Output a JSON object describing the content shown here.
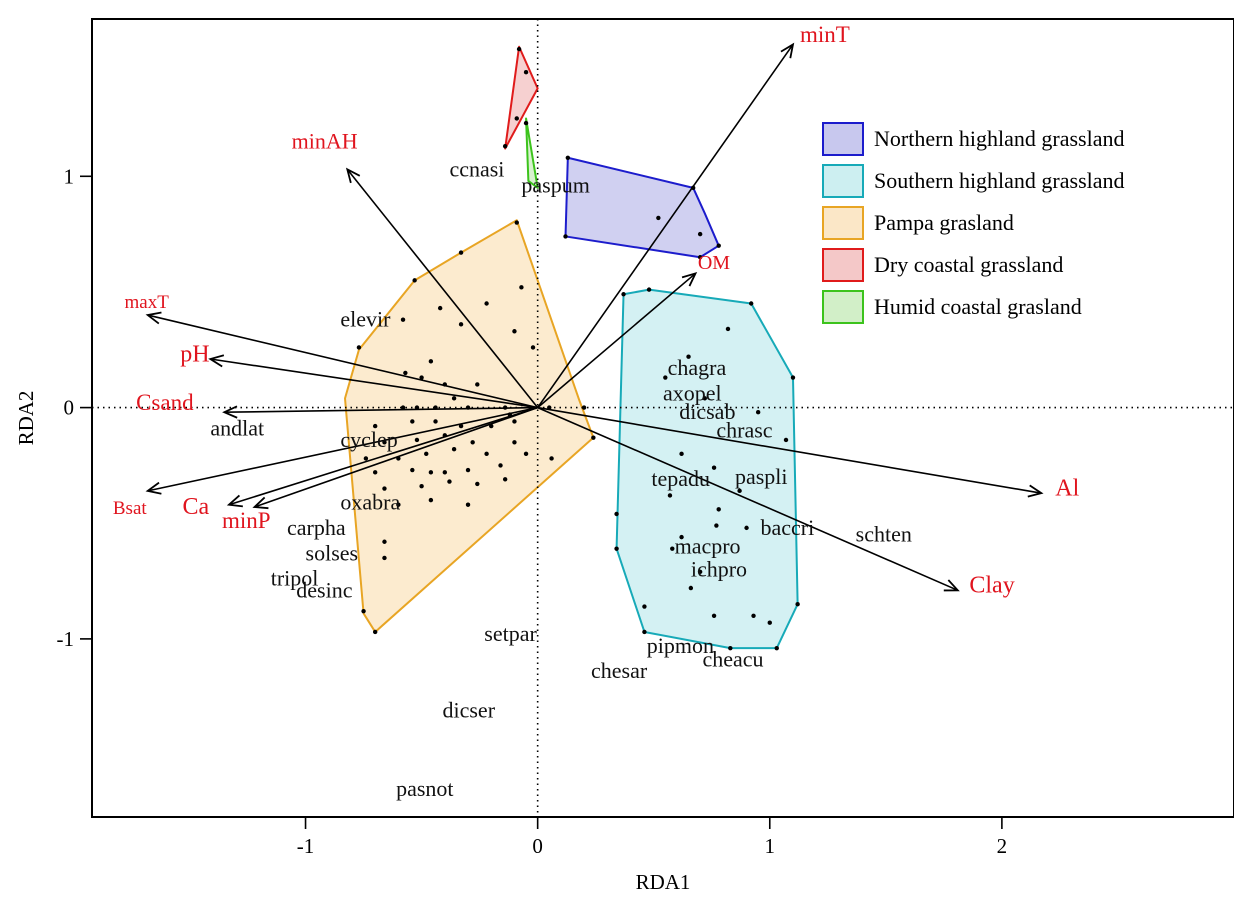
{
  "chart_data": {
    "type": "scatter",
    "title": "",
    "xlabel": "RDA1",
    "ylabel": "RDA2",
    "xlim": [
      -1.92,
      3.0
    ],
    "ylim": [
      -1.77,
      1.68
    ],
    "xticks": [
      {
        "v": -1,
        "label": "-1"
      },
      {
        "v": 0,
        "label": "0"
      },
      {
        "v": 1,
        "label": "1"
      },
      {
        "v": 2,
        "label": "2"
      }
    ],
    "yticks": [
      {
        "v": -1,
        "label": "-1"
      },
      {
        "v": 0,
        "label": "0"
      },
      {
        "v": 1,
        "label": "1"
      }
    ],
    "reference_lines": {
      "x": 0,
      "y": 0,
      "style": "dotted"
    },
    "legend": {
      "position": "top-right",
      "entries": [
        {
          "name": "Northern highland grassland",
          "stroke": "#1c1ccc",
          "fill": "#c8c8ee"
        },
        {
          "name": "Southern highland grassland",
          "stroke": "#17aab8",
          "fill": "#cdeff1"
        },
        {
          "name": "Pampa grasland",
          "stroke": "#e8a524",
          "fill": "#fbe7c7"
        },
        {
          "name": "Dry coastal grassland",
          "stroke": "#e01b1b",
          "fill": "#f4c8c8"
        },
        {
          "name": "Humid coastal grasland",
          "stroke": "#3cc31c",
          "fill": "#d2efc8"
        }
      ]
    },
    "hulls": [
      {
        "group": "Northern highland grassland",
        "points": [
          [
            0.13,
            1.08
          ],
          [
            0.67,
            0.95
          ],
          [
            0.72,
            0.84
          ],
          [
            0.78,
            0.7
          ],
          [
            0.7,
            0.65
          ],
          [
            0.12,
            0.74
          ]
        ]
      },
      {
        "group": "Southern highland grassland",
        "points": [
          [
            0.37,
            0.49
          ],
          [
            0.48,
            0.51
          ],
          [
            0.92,
            0.45
          ],
          [
            1.1,
            0.13
          ],
          [
            1.12,
            -0.85
          ],
          [
            1.03,
            -1.04
          ],
          [
            0.83,
            -1.04
          ],
          [
            0.46,
            -0.97
          ],
          [
            0.34,
            -0.61
          ]
        ]
      },
      {
        "group": "Pampa grasland",
        "points": [
          [
            -0.09,
            0.81
          ],
          [
            -0.33,
            0.67
          ],
          [
            -0.53,
            0.55
          ],
          [
            -0.77,
            0.25
          ],
          [
            -0.83,
            0.04
          ],
          [
            -0.75,
            -0.89
          ],
          [
            -0.7,
            -0.97
          ],
          [
            0.24,
            -0.13
          ],
          [
            0.18,
            0.03
          ]
        ]
      },
      {
        "group": "Dry coastal grassland",
        "points": [
          [
            -0.08,
            1.56
          ],
          [
            0.0,
            1.38
          ],
          [
            -0.07,
            1.25
          ],
          [
            -0.14,
            1.12
          ]
        ]
      },
      {
        "group": "Humid coastal grasland",
        "points": [
          [
            -0.05,
            1.25
          ],
          [
            0.0,
            0.95
          ],
          [
            -0.04,
            0.98
          ]
        ]
      }
    ],
    "site_points": [
      [
        -0.08,
        1.55
      ],
      [
        -0.05,
        1.45
      ],
      [
        -0.09,
        1.25
      ],
      [
        -0.14,
        1.13
      ],
      [
        -0.05,
        1.23
      ],
      [
        0.13,
        1.08
      ],
      [
        0.67,
        0.95
      ],
      [
        0.52,
        0.82
      ],
      [
        0.7,
        0.75
      ],
      [
        0.78,
        0.7
      ],
      [
        0.7,
        0.65
      ],
      [
        0.12,
        0.74
      ],
      [
        -0.09,
        0.8
      ],
      [
        -0.33,
        0.67
      ],
      [
        -0.53,
        0.55
      ],
      [
        -0.07,
        0.52
      ],
      [
        -0.42,
        0.43
      ],
      [
        -0.22,
        0.45
      ],
      [
        -0.58,
        0.38
      ],
      [
        -0.33,
        0.36
      ],
      [
        -0.1,
        0.33
      ],
      [
        -0.77,
        0.26
      ],
      [
        -0.02,
        0.26
      ],
      [
        -0.46,
        0.2
      ],
      [
        -0.57,
        0.15
      ],
      [
        -0.5,
        0.13
      ],
      [
        -0.4,
        0.1
      ],
      [
        -0.26,
        0.1
      ],
      [
        -0.36,
        0.04
      ],
      [
        -0.58,
        0.0
      ],
      [
        -0.52,
        0.0
      ],
      [
        -0.44,
        0.0
      ],
      [
        -0.3,
        0.0
      ],
      [
        -0.14,
        0.0
      ],
      [
        -0.12,
        -0.03
      ],
      [
        0.05,
        0.0
      ],
      [
        0.2,
        0.0
      ],
      [
        -0.7,
        -0.08
      ],
      [
        -0.54,
        -0.06
      ],
      [
        -0.44,
        -0.06
      ],
      [
        -0.33,
        -0.08
      ],
      [
        -0.2,
        -0.08
      ],
      [
        -0.1,
        -0.06
      ],
      [
        -0.66,
        -0.15
      ],
      [
        -0.52,
        -0.14
      ],
      [
        -0.4,
        -0.12
      ],
      [
        -0.28,
        -0.15
      ],
      [
        -0.1,
        -0.15
      ],
      [
        -0.74,
        -0.22
      ],
      [
        -0.6,
        -0.22
      ],
      [
        -0.48,
        -0.2
      ],
      [
        -0.36,
        -0.18
      ],
      [
        -0.22,
        -0.2
      ],
      [
        -0.05,
        -0.2
      ],
      [
        0.06,
        -0.22
      ],
      [
        -0.7,
        -0.28
      ],
      [
        -0.54,
        -0.27
      ],
      [
        -0.46,
        -0.28
      ],
      [
        -0.4,
        -0.28
      ],
      [
        -0.3,
        -0.27
      ],
      [
        -0.16,
        -0.25
      ],
      [
        -0.66,
        -0.35
      ],
      [
        -0.5,
        -0.34
      ],
      [
        -0.38,
        -0.32
      ],
      [
        -0.26,
        -0.33
      ],
      [
        -0.14,
        -0.31
      ],
      [
        -0.6,
        -0.42
      ],
      [
        -0.46,
        -0.4
      ],
      [
        -0.3,
        -0.42
      ],
      [
        -0.66,
        -0.58
      ],
      [
        -0.66,
        -0.65
      ],
      [
        -0.75,
        -0.88
      ],
      [
        -0.7,
        -0.97
      ],
      [
        0.24,
        -0.13
      ],
      [
        0.37,
        0.49
      ],
      [
        0.48,
        0.51
      ],
      [
        0.92,
        0.45
      ],
      [
        0.82,
        0.34
      ],
      [
        0.65,
        0.22
      ],
      [
        1.1,
        0.13
      ],
      [
        0.55,
        0.13
      ],
      [
        0.72,
        0.04
      ],
      [
        0.95,
        -0.02
      ],
      [
        1.07,
        -0.14
      ],
      [
        0.62,
        -0.2
      ],
      [
        0.76,
        -0.26
      ],
      [
        0.87,
        -0.36
      ],
      [
        0.57,
        -0.38
      ],
      [
        0.78,
        -0.44
      ],
      [
        0.34,
        -0.46
      ],
      [
        0.77,
        -0.51
      ],
      [
        0.9,
        -0.52
      ],
      [
        0.62,
        -0.56
      ],
      [
        0.58,
        -0.61
      ],
      [
        0.34,
        -0.61
      ],
      [
        0.7,
        -0.71
      ],
      [
        0.66,
        -0.78
      ],
      [
        1.12,
        -0.85
      ],
      [
        0.46,
        -0.86
      ],
      [
        0.93,
        -0.9
      ],
      [
        0.76,
        -0.9
      ],
      [
        1.0,
        -0.93
      ],
      [
        1.03,
        -1.04
      ],
      [
        0.83,
        -1.04
      ],
      [
        0.46,
        -0.97
      ]
    ],
    "env_vectors": [
      {
        "label": "minT",
        "x": 1.1,
        "y": 1.57
      },
      {
        "label": "minAH",
        "x": -0.82,
        "y": 1.03
      },
      {
        "label": "OM",
        "x": 0.68,
        "y": 0.58
      },
      {
        "label": "maxT",
        "x": -1.68,
        "y": 0.4
      },
      {
        "label": "pH",
        "x": -1.41,
        "y": 0.21
      },
      {
        "label": "Csand",
        "x": -1.35,
        "y": -0.02
      },
      {
        "label": "Bsat",
        "x": -1.68,
        "y": -0.36
      },
      {
        "label": "Ca",
        "x": -1.33,
        "y": -0.42
      },
      {
        "label": "minP",
        "x": -1.22,
        "y": -0.43
      },
      {
        "label": "Al",
        "x": 2.17,
        "y": -0.37
      },
      {
        "label": "Clay",
        "x": 1.81,
        "y": -0.79
      }
    ],
    "env_labels": [
      {
        "label": "minT",
        "x": 1.13,
        "y": 1.58,
        "size": 23
      },
      {
        "label": "minAH",
        "x": -1.06,
        "y": 1.12,
        "size": 22
      },
      {
        "label": "OM",
        "x": 0.69,
        "y": 0.6,
        "size": 20
      },
      {
        "label": "maxT",
        "x": -1.78,
        "y": 0.43,
        "size": 19
      },
      {
        "label": "pH",
        "x": -1.54,
        "y": 0.2,
        "size": 24
      },
      {
        "label": "Csand",
        "x": -1.73,
        "y": -0.01,
        "size": 23
      },
      {
        "label": "Bsat",
        "x": -1.83,
        "y": -0.46,
        "size": 19
      },
      {
        "label": "Ca",
        "x": -1.53,
        "y": -0.46,
        "size": 24
      },
      {
        "label": "minP",
        "x": -1.36,
        "y": -0.52,
        "size": 23
      },
      {
        "label": "Al",
        "x": 2.23,
        "y": -0.38,
        "size": 24
      },
      {
        "label": "Clay",
        "x": 1.86,
        "y": -0.8,
        "size": 24
      }
    ],
    "species": [
      {
        "label": "ccnasi",
        "x": -0.38,
        "y": 1.0
      },
      {
        "label": "paspum",
        "x": -0.07,
        "y": 0.93
      },
      {
        "label": "elevir",
        "x": -0.85,
        "y": 0.35
      },
      {
        "label": "chagra",
        "x": 0.56,
        "y": 0.14
      },
      {
        "label": "axopel",
        "x": 0.54,
        "y": 0.03
      },
      {
        "label": "dicsab",
        "x": 0.61,
        "y": -0.05
      },
      {
        "label": "chrasc",
        "x": 0.77,
        "y": -0.13
      },
      {
        "label": "andlat",
        "x": -1.41,
        "y": -0.12
      },
      {
        "label": "cyclep",
        "x": -0.85,
        "y": -0.17
      },
      {
        "label": "tepadu",
        "x": 0.49,
        "y": -0.34
      },
      {
        "label": "paspli",
        "x": 0.85,
        "y": -0.33
      },
      {
        "label": "oxabra",
        "x": -0.85,
        "y": -0.44
      },
      {
        "label": "carpha",
        "x": -1.08,
        "y": -0.55
      },
      {
        "label": "baccri",
        "x": 0.96,
        "y": -0.55
      },
      {
        "label": "schten",
        "x": 1.37,
        "y": -0.58
      },
      {
        "label": "macpro",
        "x": 0.59,
        "y": -0.63
      },
      {
        "label": "solses",
        "x": -1.0,
        "y": -0.66
      },
      {
        "label": "ichpro",
        "x": 0.66,
        "y": -0.73
      },
      {
        "label": "tripol",
        "x": -1.15,
        "y": -0.77
      },
      {
        "label": "desinc",
        "x": -1.04,
        "y": -0.82
      },
      {
        "label": "setpar",
        "x": -0.23,
        "y": -1.01
      },
      {
        "label": "pipmon",
        "x": 0.47,
        "y": -1.06
      },
      {
        "label": "cheacu",
        "x": 0.71,
        "y": -1.12
      },
      {
        "label": "chesar",
        "x": 0.23,
        "y": -1.17
      },
      {
        "label": "dicser",
        "x": -0.41,
        "y": -1.34
      },
      {
        "label": "pasnot",
        "x": -0.61,
        "y": -1.68
      }
    ]
  }
}
